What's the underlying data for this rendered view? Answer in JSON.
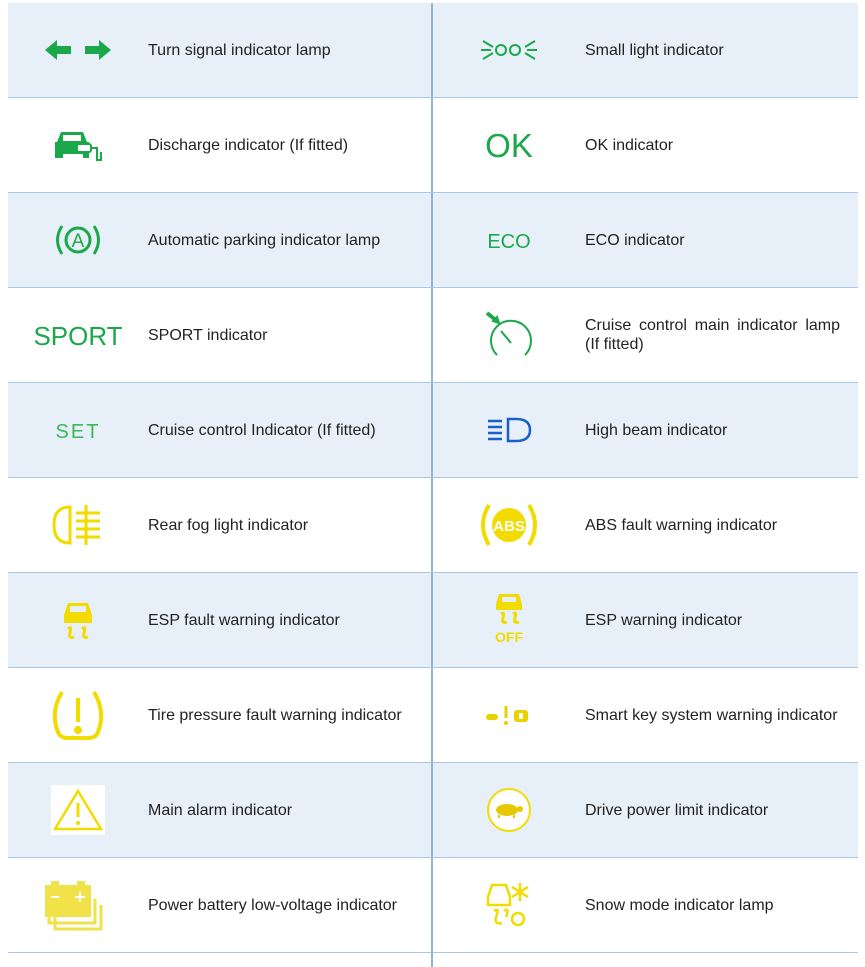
{
  "rows": [
    {
      "left": {
        "label": "Turn signal indicator lamp"
      },
      "right": {
        "label": "Small light indicator"
      }
    },
    {
      "left": {
        "label": "Discharge indicator (If fitted)"
      },
      "right": {
        "icon_text": "OK",
        "label": "OK indicator"
      }
    },
    {
      "left": {
        "icon_text": "A",
        "label": "Automatic parking indicator lamp"
      },
      "right": {
        "icon_text": "ECO",
        "label": "ECO indicator"
      }
    },
    {
      "left": {
        "icon_text": "SPORT",
        "label": "SPORT indicator"
      },
      "right": {
        "label": "Cruise control main indicator lamp (If fitted)"
      }
    },
    {
      "left": {
        "icon_text": "SET",
        "label": "Cruise control Indicator (If fitted)"
      },
      "right": {
        "label": "High beam indicator"
      }
    },
    {
      "left": {
        "label": "Rear fog light indicator"
      },
      "right": {
        "icon_text": "ABS",
        "label": "ABS fault warning indicator"
      }
    },
    {
      "left": {
        "label": "ESP fault warning indicator"
      },
      "right": {
        "icon_text": "OFF",
        "label": "ESP warning indicator"
      }
    },
    {
      "left": {
        "label": "Tire pressure fault warning indicator"
      },
      "right": {
        "label": "Smart key system warning indicator"
      }
    },
    {
      "left": {
        "label": "Main alarm indicator"
      },
      "right": {
        "label": "Drive power limit indicator"
      }
    },
    {
      "left": {
        "label": "Power battery low-voltage indicator"
      },
      "right": {
        "label": "Snow mode indicator lamp"
      }
    }
  ]
}
